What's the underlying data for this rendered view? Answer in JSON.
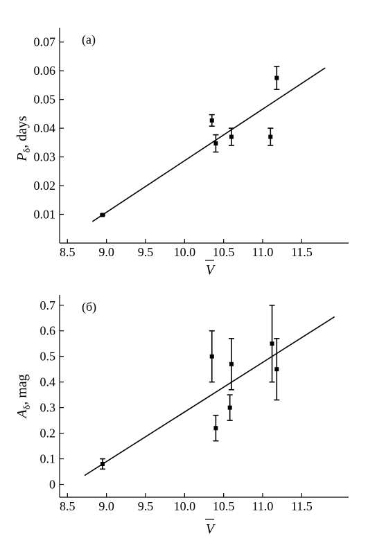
{
  "chart_data": [
    {
      "type": "scatter",
      "panel_label": "(a)",
      "ylabel_main": "P",
      "ylabel_sub": "δ",
      "ylabel_rest": ", days",
      "xlabel": "V",
      "xlim": [
        8.4,
        12.1
      ],
      "ylim": [
        0.0,
        0.075
      ],
      "x_ticks": [
        "8.5",
        "9.0",
        "9.5",
        "10.0",
        "10.5",
        "11.0",
        "11.5"
      ],
      "y_ticks": [
        "0.01",
        "0.02",
        "0.03",
        "0.04",
        "0.05",
        "0.06",
        "0.07"
      ],
      "points": [
        {
          "x": 8.95,
          "y": 0.0098,
          "err": 0.0003
        },
        {
          "x": 10.35,
          "y": 0.0427,
          "err": 0.002
        },
        {
          "x": 10.4,
          "y": 0.0347,
          "err": 0.003
        },
        {
          "x": 10.6,
          "y": 0.037,
          "err": 0.003
        },
        {
          "x": 11.1,
          "y": 0.037,
          "err": 0.003
        },
        {
          "x": 11.18,
          "y": 0.0575,
          "err": 0.004
        }
      ],
      "fit_line": {
        "x": [
          8.82,
          11.8
        ],
        "y": [
          0.0075,
          0.061
        ]
      }
    },
    {
      "type": "scatter",
      "panel_label": "(б)",
      "ylabel_main": "A",
      "ylabel_sub": "δ",
      "ylabel_rest": ", mag",
      "xlabel": "V",
      "xlim": [
        8.4,
        12.1
      ],
      "ylim": [
        -0.05,
        0.74
      ],
      "x_ticks": [
        "8.5",
        "9.0",
        "9.5",
        "10.0",
        "10.5",
        "11.0",
        "11.5"
      ],
      "y_ticks": [
        "0",
        "0.1",
        "0.2",
        "0.3",
        "0.4",
        "0.5",
        "0.6",
        "0.7"
      ],
      "points": [
        {
          "x": 8.95,
          "y": 0.08,
          "err": 0.02
        },
        {
          "x": 10.35,
          "y": 0.5,
          "err": 0.1
        },
        {
          "x": 10.4,
          "y": 0.22,
          "err": 0.05
        },
        {
          "x": 10.58,
          "y": 0.3,
          "err": 0.05
        },
        {
          "x": 10.6,
          "y": 0.47,
          "err": 0.1
        },
        {
          "x": 11.12,
          "y": 0.55,
          "err": 0.15
        },
        {
          "x": 11.18,
          "y": 0.45,
          "err": 0.12
        }
      ],
      "fit_line": {
        "x": [
          8.72,
          11.92
        ],
        "y": [
          0.035,
          0.655
        ]
      }
    }
  ]
}
